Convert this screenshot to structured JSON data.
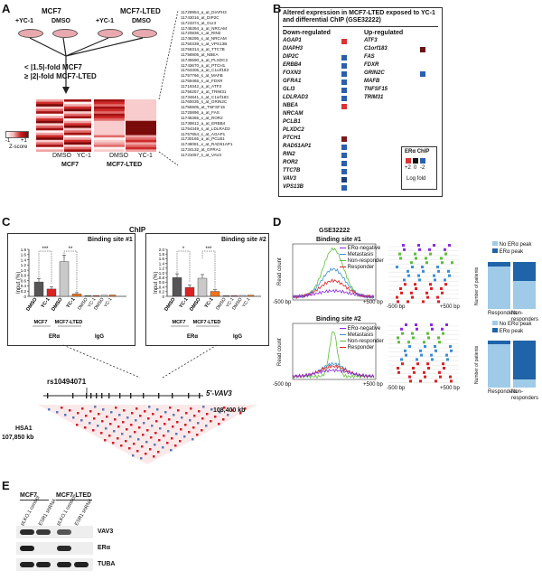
{
  "panelA": {
    "letter": "A",
    "mcf7": "MCF7",
    "mcf7_ltED": "MCF7-LTED",
    "yc1": "+YC-1",
    "dmso": "DMSO",
    "crit1": "< |1.5|-fold MCF7",
    "crit2": "≥ |2|-fold MCF7-LTED",
    "zscore": "Z-score",
    "zmin": "-1",
    "zmax": "+1",
    "col_dmso": "DMSO",
    "col_yc1": "YC-1",
    "group_mcf7": "MCF7",
    "group_ltED": "MCF7-LTED",
    "probes": [
      "11728954_a_at_DIAPH3",
      "11743016_at_DIP2C",
      "11723374_at_GLI3",
      "11746394_a_at_NRCAM",
      "11720836_x_at_RIN2",
      "11746295_x_at_NRCAM",
      "11750339_x_at_VPS13B",
      "11756314_a_at_TTC7B",
      "11756905_at_NBEA",
      "11745590_a_at_PLXDC2",
      "11743670_a_at_PTCH1",
      "11763305_a_at_C1orf183",
      "11757766_s_at_MAFB",
      "11759465_s_at_FDXR",
      "11719342_a_at_ATF3",
      "11756257_a_at_TRIM31",
      "11734841_s_at_C1orf183",
      "11760035_s_at_GRIN2C",
      "11755905_at_TNFSF15",
      "11725896_a_at_FAS",
      "11746365_x_at_ROR2",
      "11739812_a_at_ERBB4",
      "11754349_s_at_LDLRAD3",
      "11757954_x_at_AGAP1",
      "11730165_a_at_PCLB1",
      "11748081_x_at_RAD51AP1",
      "11734132_at_GFRA1",
      "11731057_s_at_VAV3"
    ]
  },
  "panelB": {
    "letter": "B",
    "title": "Altered expression in MCF7-LTED exposed to YC-1 and differential ChIP (GSE32222)",
    "down_header": "Down-regulated",
    "up_header": "Up-regulated",
    "down_genes": [
      "AGAP1",
      "DIAPH3",
      "DIP2C",
      "ERBB4",
      "FOXN3",
      "GFRA1",
      "GLI3",
      "LDLRAD3",
      "NBEA",
      "NRCAM",
      "PCLB1",
      "PLXDC2",
      "PTCH1",
      "RAD51AP1",
      "RIN2",
      "ROR2",
      "TTC7B",
      "VAV3",
      "VPS13B"
    ],
    "down_colors": [
      "#d33",
      "",
      "#2a5fae",
      "#2a5fae",
      "#2a5fae",
      "#2a5fae",
      "#2a5fae",
      "#2a5fae",
      "#d33",
      "",
      "",
      "",
      "#7b1a1a",
      "#2a5fae",
      "#2a5fae",
      "#2a5fae",
      "#2a5fae",
      "#1a3f7a",
      "#2a5fae"
    ],
    "up_genes": [
      "ATF3",
      "C1orf183",
      "FAS",
      "FDXR",
      "GRIN2C",
      "MAFB",
      "TNFSF15",
      "TRIM31"
    ],
    "up_colors": [
      "",
      "#6a1515",
      "",
      "",
      "#2a5fae",
      "",
      "",
      ""
    ],
    "legend_title": "ERα ChIP",
    "legend_lo": "+2",
    "legend_mid": "0",
    "legend_hi": "-2",
    "legend_sub": "Log fold"
  },
  "panelC": {
    "letter": "C",
    "title": "ChIP",
    "site1": "Binding site #1",
    "site2": "Binding site #2",
    "ylabel": "Input (%)",
    "yticks1": [
      "1.8",
      "1.6",
      "1.4",
      "1.2",
      "1.0",
      "0.8",
      "0.6",
      "0.4",
      "0.2",
      "0"
    ],
    "yticks2": [
      "2.0",
      "1.8",
      "1.6",
      "1.4",
      "1.2",
      "1.0",
      "0.8",
      "0.6",
      "0.4",
      "0.2",
      "0"
    ],
    "sig1a": "***",
    "sig1b": "**",
    "sig2a": "*",
    "sig2b": "***",
    "lane_dmso": "DMSO",
    "lane_yc1": "YC-1",
    "grp_mcf7": "MCF7",
    "grp_ltED": "MCF7-LTED",
    "era": "ERα",
    "igg": "IgG",
    "snp": "rs10494071",
    "gene": "5'-VAV3",
    "chrom": "HSA1",
    "start": "107,850 kb",
    "end": "108,400 kb"
  },
  "chart_data": [
    {
      "type": "bar",
      "title": "Binding site #1",
      "ylabel": "Input (%)",
      "ylim": [
        0,
        1.8
      ],
      "categories": [
        "MCF7 DMSO",
        "MCF7 YC-1",
        "MCF7-LTED DMSO",
        "MCF7-LTED YC-1",
        "IgG 1",
        "IgG 2",
        "IgG 3",
        "IgG 4"
      ],
      "values": [
        0.55,
        0.28,
        1.33,
        0.09,
        0.03,
        0.03,
        0.04,
        0.05
      ]
    },
    {
      "type": "bar",
      "title": "Binding site #2",
      "ylabel": "Input (%)",
      "ylim": [
        0,
        2.0
      ],
      "categories": [
        "MCF7 DMSO",
        "MCF7 YC-1",
        "MCF7-LTED DMSO",
        "MCF7-LTED YC-1",
        "IgG 1",
        "IgG 2",
        "IgG 3",
        "IgG 4"
      ],
      "values": [
        0.8,
        0.38,
        0.77,
        0.21,
        0.03,
        0.03,
        0.04,
        0.05
      ]
    }
  ],
  "panelD": {
    "letter": "D",
    "title": "GSE32222",
    "site1": "Binding site #1",
    "site2": "Binding site #2",
    "legend": [
      "ERα-negative",
      "Metastasis",
      "Non-responder",
      "Responder"
    ],
    "ylabel": "Read count",
    "x_left": "-500 bp",
    "x_right": "+500 bp",
    "bar_ylabel": "Number of patients",
    "no_peak": "No ERα peak",
    "peak": "ERα peak",
    "responders": "Responders",
    "nonresponders": "Non-responders"
  },
  "panelE": {
    "letter": "E",
    "mcf7": "MCF7",
    "mcf7_ltED": "MCF7-LTED",
    "lanes": [
      "pLKO.1 control",
      "ESR1 shRNA",
      "pLKO.1 control",
      "ESR1 shRNA"
    ],
    "vav3": "VAV3",
    "era": "ERα",
    "tuba": "TUBA"
  }
}
